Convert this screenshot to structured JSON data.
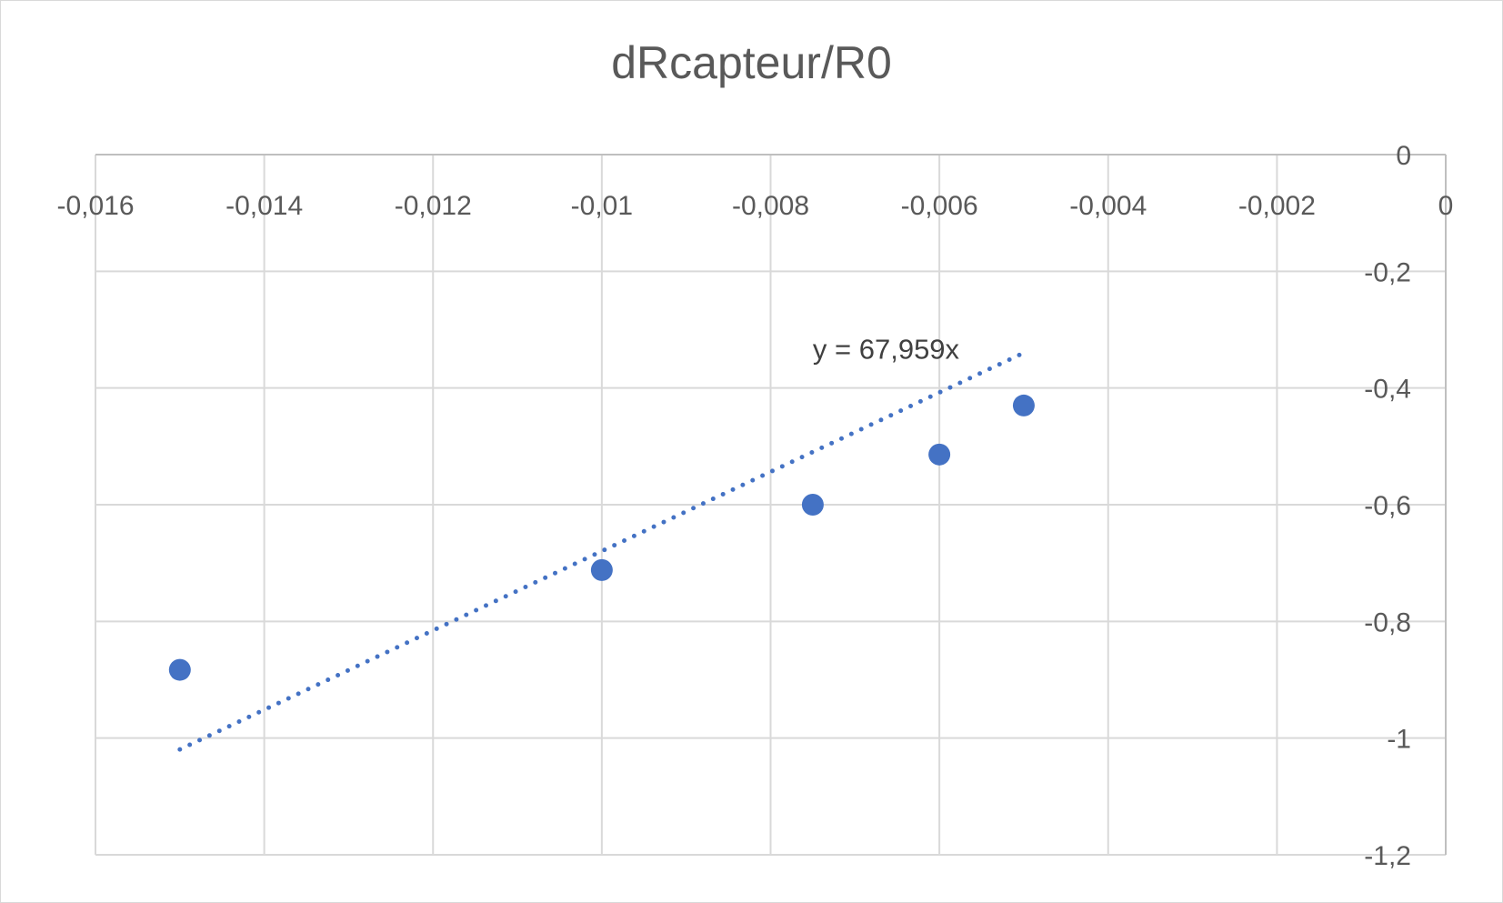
{
  "chart_data": {
    "type": "scatter",
    "title": "dRcapteur/R0",
    "xlabel": "",
    "ylabel": "",
    "xlim": [
      -0.016,
      0
    ],
    "ylim": [
      -1.2,
      0
    ],
    "x_ticks": [
      -0.016,
      -0.014,
      -0.012,
      -0.01,
      -0.008,
      -0.006,
      -0.004,
      -0.002,
      0
    ],
    "x_tick_labels": [
      "-0,016",
      "-0,014",
      "-0,012",
      "-0,01",
      "-0,008",
      "-0,006",
      "-0,004",
      "-0,002",
      "0"
    ],
    "y_ticks": [
      0,
      -0.2,
      -0.4,
      -0.6,
      -0.8,
      -1,
      -1.2
    ],
    "y_tick_labels": [
      "0",
      "-0,2",
      "-0,4",
      "-0,6",
      "-0,8",
      "-1",
      "-1,2"
    ],
    "grid": true,
    "legend": "none",
    "series": [
      {
        "color": "#4472C4",
        "points": [
          {
            "x": -0.015,
            "y": -0.883
          },
          {
            "x": -0.01,
            "y": -0.712
          },
          {
            "x": -0.0075,
            "y": -0.6
          },
          {
            "x": -0.006,
            "y": -0.514
          },
          {
            "x": -0.005,
            "y": -0.43
          }
        ]
      }
    ],
    "trendline": {
      "type": "linear",
      "slope": 67.959,
      "intercept": 0,
      "x_range": [
        -0.015,
        -0.005
      ],
      "style": "dotted",
      "color": "#4472C4",
      "equation_label": "y = 67,959x"
    }
  }
}
